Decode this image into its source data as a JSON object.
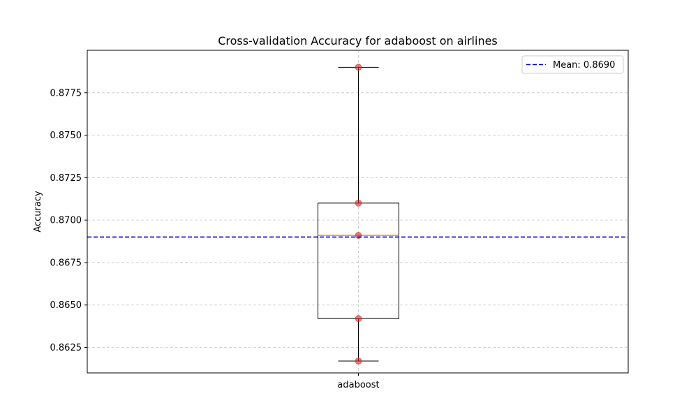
{
  "chart_data": {
    "type": "box",
    "title": "Cross-validation Accuracy for adaboost on airlines",
    "xlabel": "",
    "ylabel": "Accuracy",
    "categories": [
      "adaboost"
    ],
    "ylim": [
      0.861,
      0.88
    ],
    "yticks": [
      0.8625,
      0.865,
      0.8675,
      0.87,
      0.8725,
      0.875,
      0.8775
    ],
    "ytick_labels": [
      "0.8625",
      "0.8650",
      "0.8675",
      "0.8700",
      "0.8725",
      "0.8750",
      "0.8775"
    ],
    "grid": true,
    "box": {
      "whisker_low": 0.8617,
      "q1": 0.8642,
      "median": 0.8691,
      "q3": 0.871,
      "whisker_high": 0.879
    },
    "points": [
      0.879,
      0.871,
      0.8691,
      0.8642,
      0.8617
    ],
    "mean": 0.869,
    "legend": {
      "placement": "top-right",
      "entries": [
        "Mean: 0.8690"
      ]
    },
    "colors": {
      "box": "#000000",
      "median": "#ff7f0e",
      "points": "#d62728",
      "mean_line": "#0000cc",
      "grid": "#c8c8c8"
    }
  }
}
